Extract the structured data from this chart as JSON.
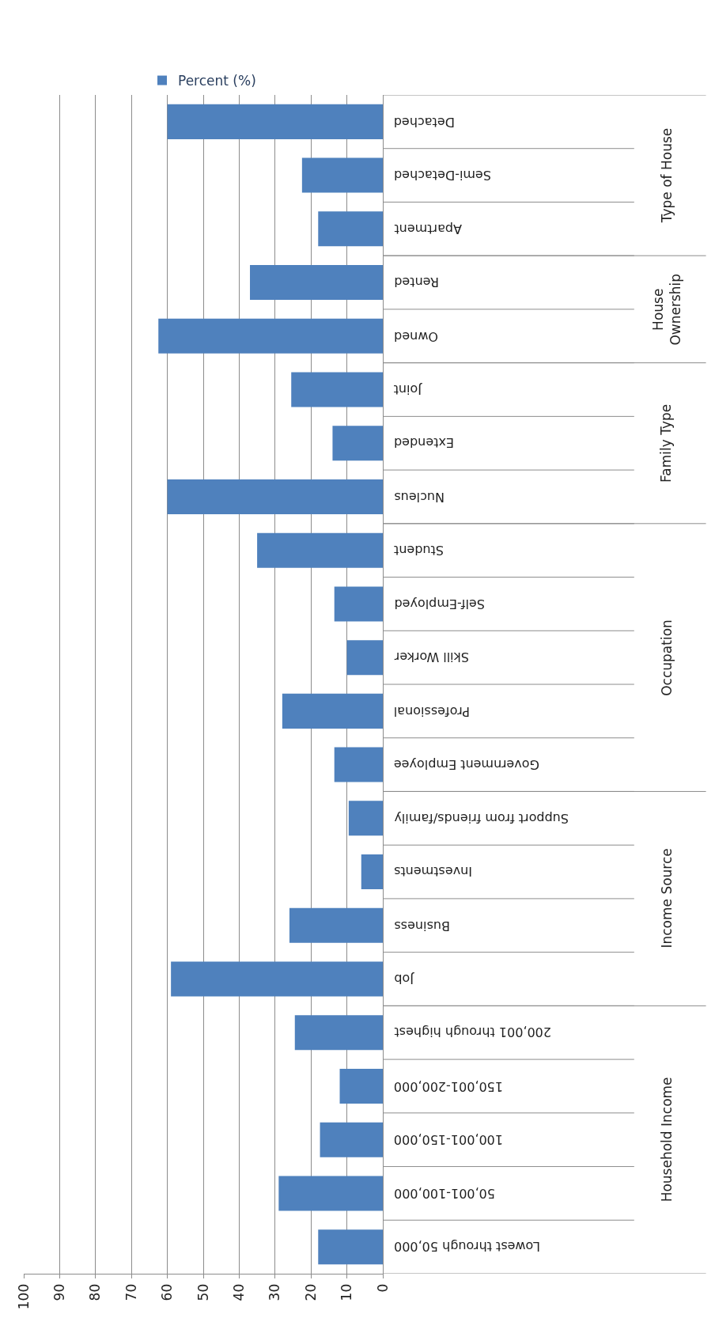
{
  "chart_data": {
    "type": "bar",
    "orientation": "horizontal",
    "categories": [
      "Detached",
      "Semi-Detached",
      "Apartment",
      "Rented",
      "Owned",
      "Joint",
      "Extended",
      "Nucleus",
      "Student",
      "Self-Employed",
      "Skill Worker",
      "Professional",
      "Government Employee",
      "Support from friends/family",
      "Investments",
      "Business",
      "Job",
      "200,001 through highest",
      "150,001-200,000",
      "100,001-150,000",
      "50,001-100,000",
      "Lowest through 50,000"
    ],
    "series": [
      {
        "name": "Percent (%)",
        "color": "#4f81bd",
        "values": [
          60,
          22.5,
          18,
          37,
          62.5,
          25.5,
          14,
          60,
          35,
          13.5,
          10,
          28,
          13.5,
          9.5,
          6,
          26,
          59,
          24.5,
          12,
          17.5,
          29,
          18
        ]
      }
    ],
    "xlim": [
      100,
      0
    ],
    "xticks": [
      0,
      10,
      20,
      30,
      40,
      50,
      60,
      70,
      80,
      90,
      100
    ],
    "grid": "x",
    "legend": "top",
    "annotations": [
      "Type of House",
      "House Ownership",
      "Family Type",
      "Occupation",
      "Income Source",
      "Household Income"
    ]
  }
}
